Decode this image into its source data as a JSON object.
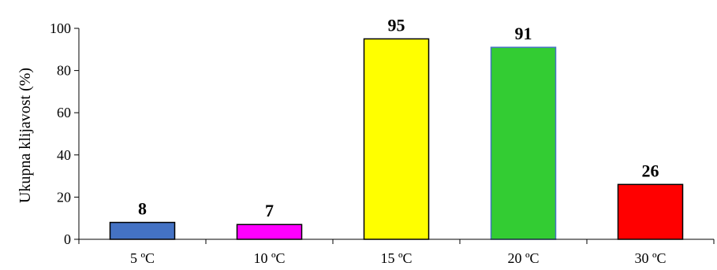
{
  "chart_data": {
    "type": "bar",
    "title": "",
    "xlabel": "",
    "ylabel": "Ukupna klijavost (%)",
    "ylim": [
      0,
      100
    ],
    "yticks": [
      0,
      20,
      40,
      60,
      80,
      100
    ],
    "grid": false,
    "legend": "none",
    "categories": [
      "5 ºC",
      "10 ºC",
      "15 ºC",
      "20 ºC",
      "30 ºC"
    ],
    "values": [
      8,
      7,
      95,
      91,
      26
    ],
    "data_labels": [
      "8",
      "7",
      "95",
      "91",
      "26"
    ],
    "colors": [
      "#4472C4",
      "#FF00FF",
      "#FFFF00",
      "#33CC33",
      "#FF0000"
    ],
    "edge_colors": [
      "#000000",
      "#000000",
      "#000000",
      "#4472C4",
      "#000000"
    ]
  }
}
